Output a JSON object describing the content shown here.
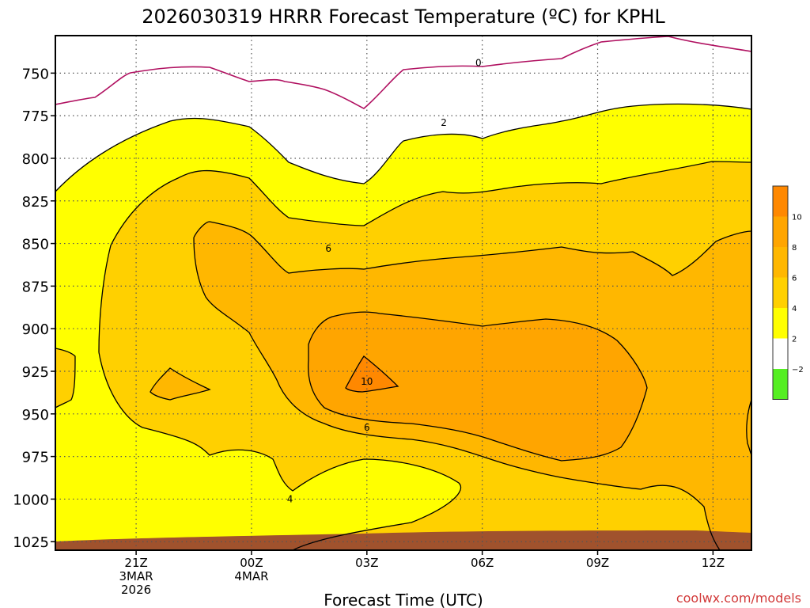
{
  "chart_data": {
    "type": "contour",
    "title": "2026030319 HRRR Forecast Temperature (ºC) for KPHL",
    "xlabel": "Forecast Time (UTC)",
    "ylabel": "",
    "credit": "coolwx.com/models",
    "y_ticks": [
      "750",
      "775",
      "800",
      "825",
      "850",
      "875",
      "900",
      "925",
      "950",
      "975",
      "1000",
      "1025"
    ],
    "y_values_hPa": [
      750,
      775,
      800,
      825,
      850,
      875,
      900,
      925,
      950,
      975,
      1000,
      1025
    ],
    "ylim_hPa": [
      1030,
      728
    ],
    "x_ticks": [
      {
        "line1": "21Z",
        "line2": "3MAR",
        "line3": "2026",
        "hour": 2
      },
      {
        "line1": "00Z",
        "line2": "4MAR",
        "line3": "",
        "hour": 5
      },
      {
        "line1": "03Z",
        "line2": "",
        "line3": "",
        "hour": 8
      },
      {
        "line1": "06Z",
        "line2": "",
        "line3": "",
        "hour": 11
      },
      {
        "line1": "09Z",
        "line2": "",
        "line3": "",
        "hour": 14
      },
      {
        "line1": "12Z",
        "line2": "",
        "line3": "",
        "hour": 17
      }
    ],
    "xlim_hours": [
      -0.1,
      18.0
    ],
    "contour_labels": [
      {
        "text": "0",
        "hour": 10.9,
        "hPa": 744
      },
      {
        "text": "2",
        "hour": 10.0,
        "hPa": 779
      },
      {
        "text": "6",
        "hour": 7.0,
        "hPa": 853
      },
      {
        "text": "10",
        "hour": 8.0,
        "hPa": 931
      },
      {
        "text": "6",
        "hour": 8.0,
        "hPa": 958
      },
      {
        "text": "4",
        "hour": 6.0,
        "hPa": 1000
      }
    ],
    "colorbar": {
      "ticks": [
        "10",
        "8",
        "6",
        "4",
        "2",
        "−2"
      ],
      "bands": [
        {
          "range": "10 to 12",
          "color": "#ff8800"
        },
        {
          "range": "8 to 10",
          "color": "#ffa500"
        },
        {
          "range": "6 to 8",
          "color": "#ffb700"
        },
        {
          "range": "4 to 6",
          "color": "#ffd000"
        },
        {
          "range": "2 to 4",
          "color": "#ffff00"
        },
        {
          "range": "-2 to 2",
          "color": "#ffffff"
        },
        {
          "range": "below -2",
          "color": "#55ee22"
        }
      ]
    },
    "colors": {
      "zero_line": "#b01060",
      "contour": "#000000",
      "ground": "#a0522d",
      "grid": "#666666"
    }
  }
}
